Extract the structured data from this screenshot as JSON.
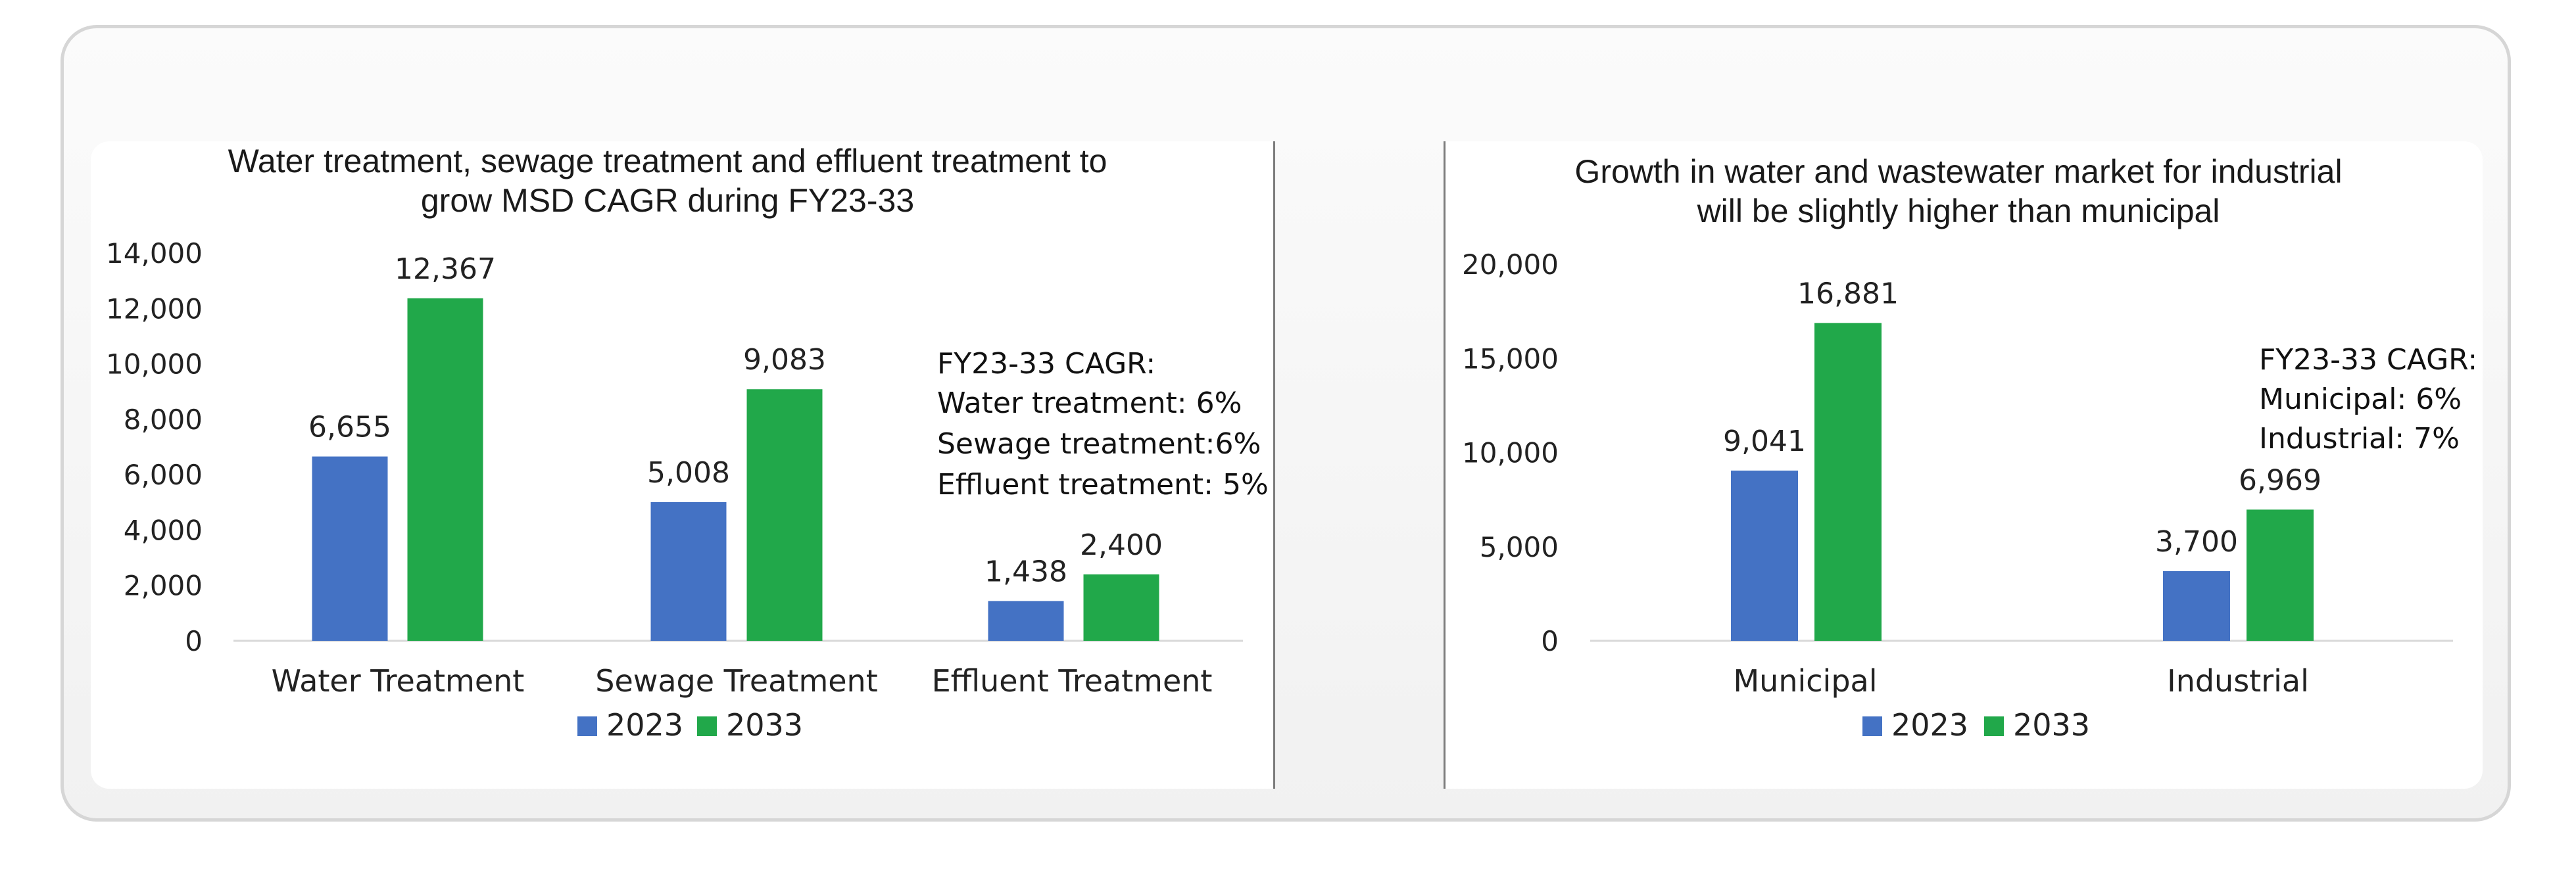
{
  "chart_data": [
    {
      "type": "bar",
      "title_lines": [
        "Water treatment, sewage treatment and effluent treatment to",
        "grow MSD CAGR during FY23-33"
      ],
      "categories": [
        "Water Treatment",
        "Sewage Treatment",
        "Effluent Treatment"
      ],
      "series": [
        {
          "name": "2023",
          "values": [
            6655,
            5008,
            1438
          ],
          "labels": [
            "6,655",
            "5,008",
            "1,438"
          ],
          "color": "#4472c4"
        },
        {
          "name": "2033",
          "values": [
            12367,
            9083,
            2400
          ],
          "labels": [
            "12,367",
            "9,083",
            "2,400"
          ],
          "color": "#21a84a"
        }
      ],
      "ylim": [
        0,
        14000
      ],
      "yticks": [
        "0",
        "2,000",
        "4,000",
        "6,000",
        "8,000",
        "10,000",
        "12,000",
        "14,000"
      ],
      "ytick_values": [
        0,
        2000,
        4000,
        6000,
        8000,
        10000,
        12000,
        14000
      ],
      "annotation": [
        "FY23-33 CAGR:",
        "Water treatment: 6%",
        "Sewage treatment:6%",
        "Effluent treatment: 5%"
      ],
      "legend": "bottom-center",
      "grid": false
    },
    {
      "type": "bar",
      "title_lines": [
        "Growth in water and wastewater market for industrial",
        "will be slightly higher than municipal"
      ],
      "categories": [
        "Municipal",
        "Industrial"
      ],
      "series": [
        {
          "name": "2023",
          "values": [
            9041,
            3700
          ],
          "labels": [
            "9,041",
            "3,700"
          ],
          "color": "#4472c4"
        },
        {
          "name": "2033",
          "values": [
            16881,
            6969
          ],
          "labels": [
            "16,881",
            "6,969"
          ],
          "color": "#21a84a"
        }
      ],
      "ylim": [
        0,
        20000
      ],
      "yticks": [
        "0",
        "5,000",
        "10,000",
        "15,000",
        "20,000"
      ],
      "ytick_values": [
        0,
        5000,
        10000,
        15000,
        20000
      ],
      "annotation": [
        "FY23-33 CAGR:",
        "Municipal: 6%",
        "Industrial: 7%"
      ],
      "legend": "bottom-center",
      "grid": false
    }
  ]
}
